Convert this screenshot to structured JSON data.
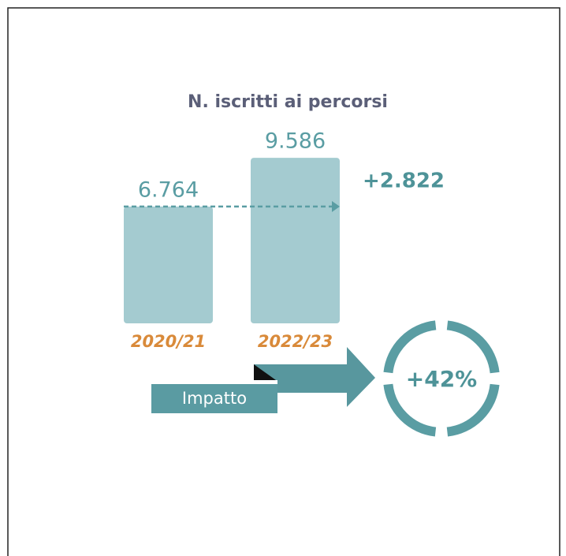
{
  "chart_data": {
    "type": "bar",
    "title": "N. iscritti ai percorsi",
    "categories": [
      "2020/21",
      "2022/23"
    ],
    "values": [
      6764,
      9586
    ],
    "value_labels": [
      "6.764",
      "9.586"
    ],
    "color": "#a4cbd0",
    "annotations": [
      "+2.822",
      "Impatto",
      "+42%"
    ]
  }
}
